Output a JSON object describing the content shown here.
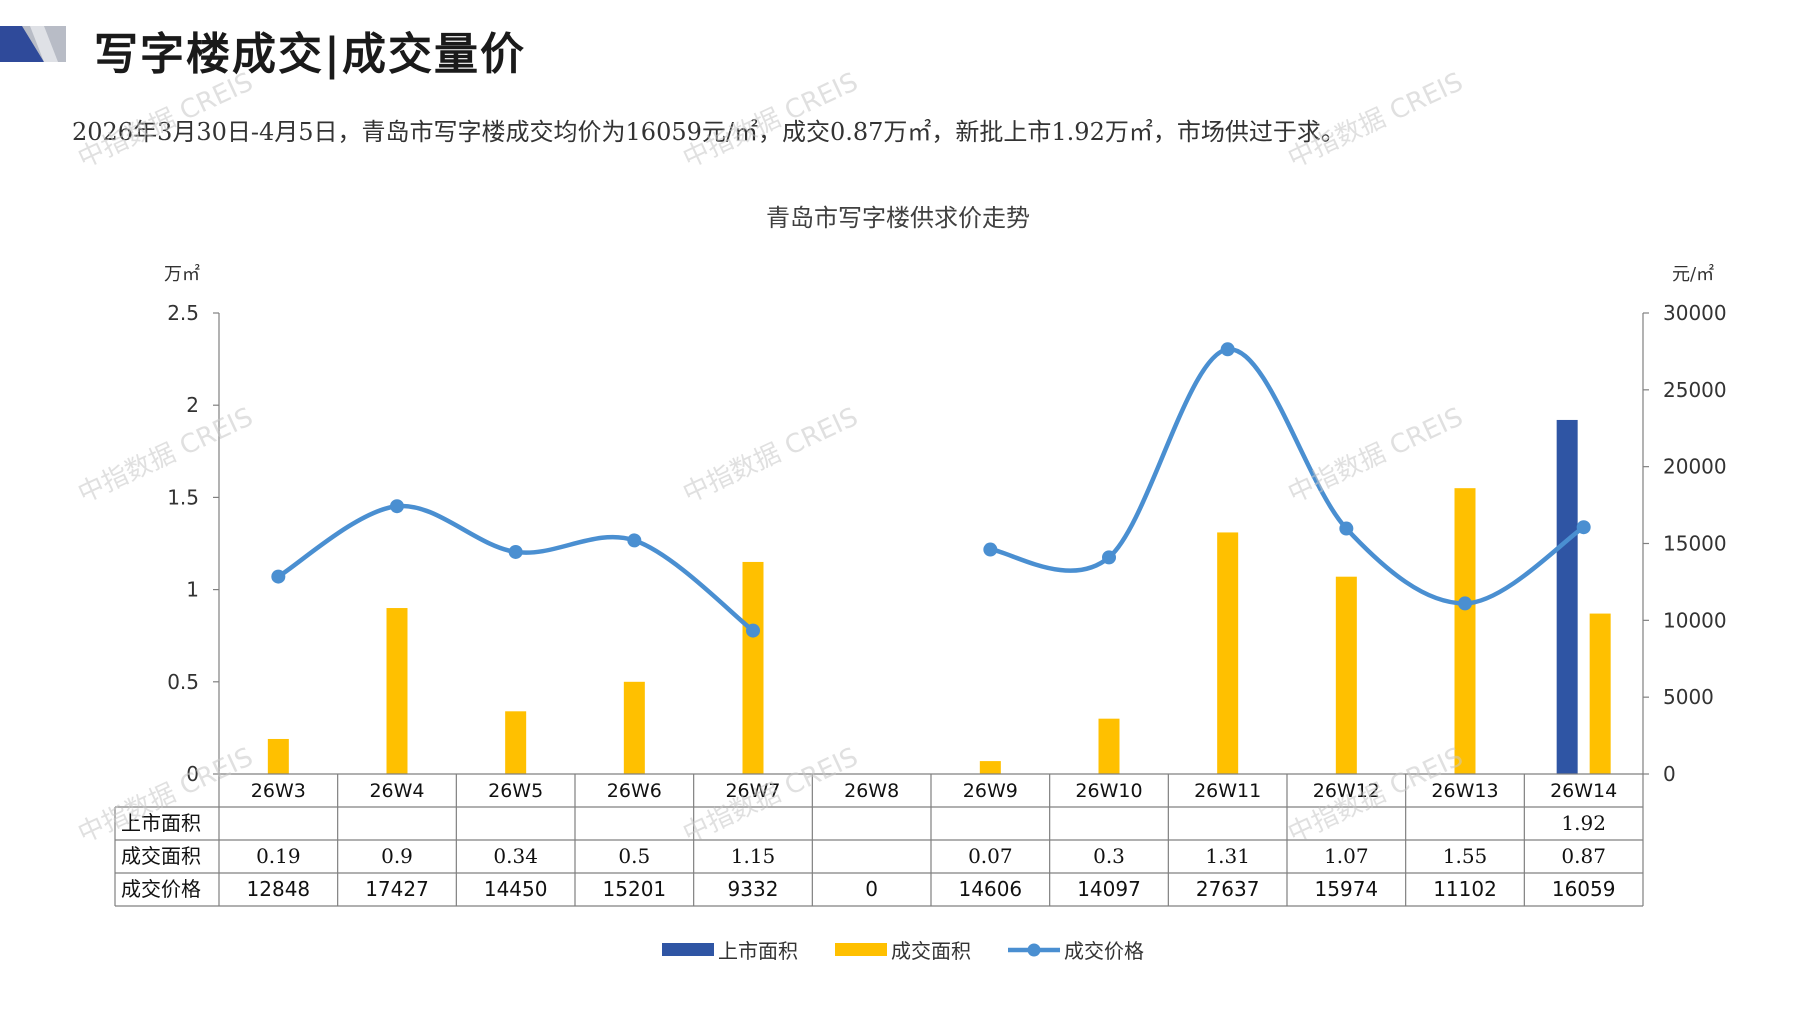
{
  "header": {
    "title": "写字楼成交|成交量价",
    "summary": "2026年3月30日-4月5日，青岛市写字楼成交均价为16059元/㎡，成交0.87万㎡，新批上市1.92万㎡，市场供过于求。"
  },
  "watermark": "中指数据 CREIS",
  "colors": {
    "supply": "#2f55a4",
    "deal_area": "#ffc000",
    "price": "#4a8fd1",
    "grid": "#808080",
    "logo_dark": "#2f4a9a",
    "logo_light": "#b8bcc6"
  },
  "chart_data": {
    "type": "bar",
    "title": "青岛市写字楼供求价走势",
    "categories": [
      "26W3",
      "26W4",
      "26W5",
      "26W6",
      "26W7",
      "26W8",
      "26W9",
      "26W10",
      "26W11",
      "26W12",
      "26W13",
      "26W14"
    ],
    "left_axis": {
      "unit": "万㎡",
      "ticks": [
        "0",
        "0.5",
        "1",
        "1.5",
        "2",
        "2.5"
      ],
      "range": [
        0,
        2.5
      ]
    },
    "right_axis": {
      "unit": "元/㎡",
      "ticks": [
        "0",
        "5000",
        "10000",
        "15000",
        "20000",
        "25000",
        "30000"
      ],
      "range": [
        0,
        30000
      ]
    },
    "series": [
      {
        "name": "上市面积",
        "type": "bar",
        "axis": "left",
        "color": "#2f55a4",
        "values": [
          null,
          null,
          null,
          null,
          null,
          null,
          null,
          null,
          null,
          null,
          null,
          1.92
        ],
        "labels": [
          "",
          "",
          "",
          "",
          "",
          "",
          "",
          "",
          "",
          "",
          "",
          "1.92"
        ]
      },
      {
        "name": "成交面积",
        "type": "bar",
        "axis": "left",
        "color": "#ffc000",
        "values": [
          0.19,
          0.9,
          0.34,
          0.5,
          1.15,
          null,
          0.07,
          0.3,
          1.31,
          1.07,
          1.55,
          0.87
        ],
        "labels": [
          "0.19",
          "0.9",
          "0.34",
          "0.5",
          "1.15",
          "",
          "0.07",
          "0.3",
          "1.31",
          "1.07",
          "1.55",
          "0.87"
        ]
      },
      {
        "name": "成交价格",
        "type": "line",
        "axis": "right",
        "color": "#4a8fd1",
        "values": [
          12848,
          17427,
          14450,
          15201,
          9332,
          0,
          14606,
          14097,
          27637,
          15974,
          11102,
          16059
        ],
        "labels": [
          "12848",
          "17427",
          "14450",
          "15201",
          "9332",
          "0",
          "14606",
          "14097",
          "27637",
          "15974",
          "11102",
          "16059"
        ]
      }
    ],
    "legend_position": "bottom",
    "grid": false
  }
}
